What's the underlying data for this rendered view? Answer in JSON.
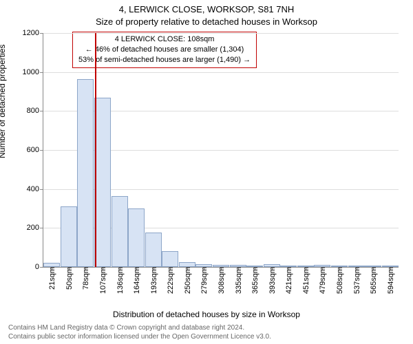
{
  "title_line1": "4, LERWICK CLOSE, WORKSOP, S81 7NH",
  "title_line2": "Size of property relative to detached houses in Worksop",
  "y_axis_label": "Number of detached properties",
  "x_axis_label": "Distribution of detached houses by size in Worksop",
  "chart": {
    "type": "bar",
    "y_max": 1200,
    "y_ticks": [
      0,
      200,
      400,
      600,
      800,
      1000,
      1200
    ],
    "categories": [
      "21sqm",
      "50sqm",
      "78sqm",
      "107sqm",
      "136sqm",
      "164sqm",
      "193sqm",
      "222sqm",
      "250sqm",
      "279sqm",
      "308sqm",
      "335sqm",
      "365sqm",
      "393sqm",
      "421sqm",
      "451sqm",
      "479sqm",
      "508sqm",
      "537sqm",
      "565sqm",
      "594sqm"
    ],
    "values": [
      20,
      310,
      965,
      870,
      365,
      300,
      175,
      80,
      25,
      15,
      10,
      10,
      8,
      15,
      3,
      3,
      10,
      2,
      2,
      2,
      2
    ],
    "bar_fill": "#d7e3f4",
    "bar_border": "#8ca5c8",
    "grid_color": "#dddddd",
    "axis_color": "#888888",
    "background": "#ffffff",
    "marker_color": "#c00000",
    "marker_category_index": 3,
    "annotation": {
      "line1": "4 LERWICK CLOSE: 108sqm",
      "line2": "← 46% of detached houses are smaller (1,304)",
      "line3": "53% of semi-detached houses are larger (1,490) →"
    }
  },
  "footer_line1": "Contains HM Land Registry data © Crown copyright and database right 2024.",
  "footer_line2": "Contains public sector information licensed under the Open Government Licence v3.0."
}
